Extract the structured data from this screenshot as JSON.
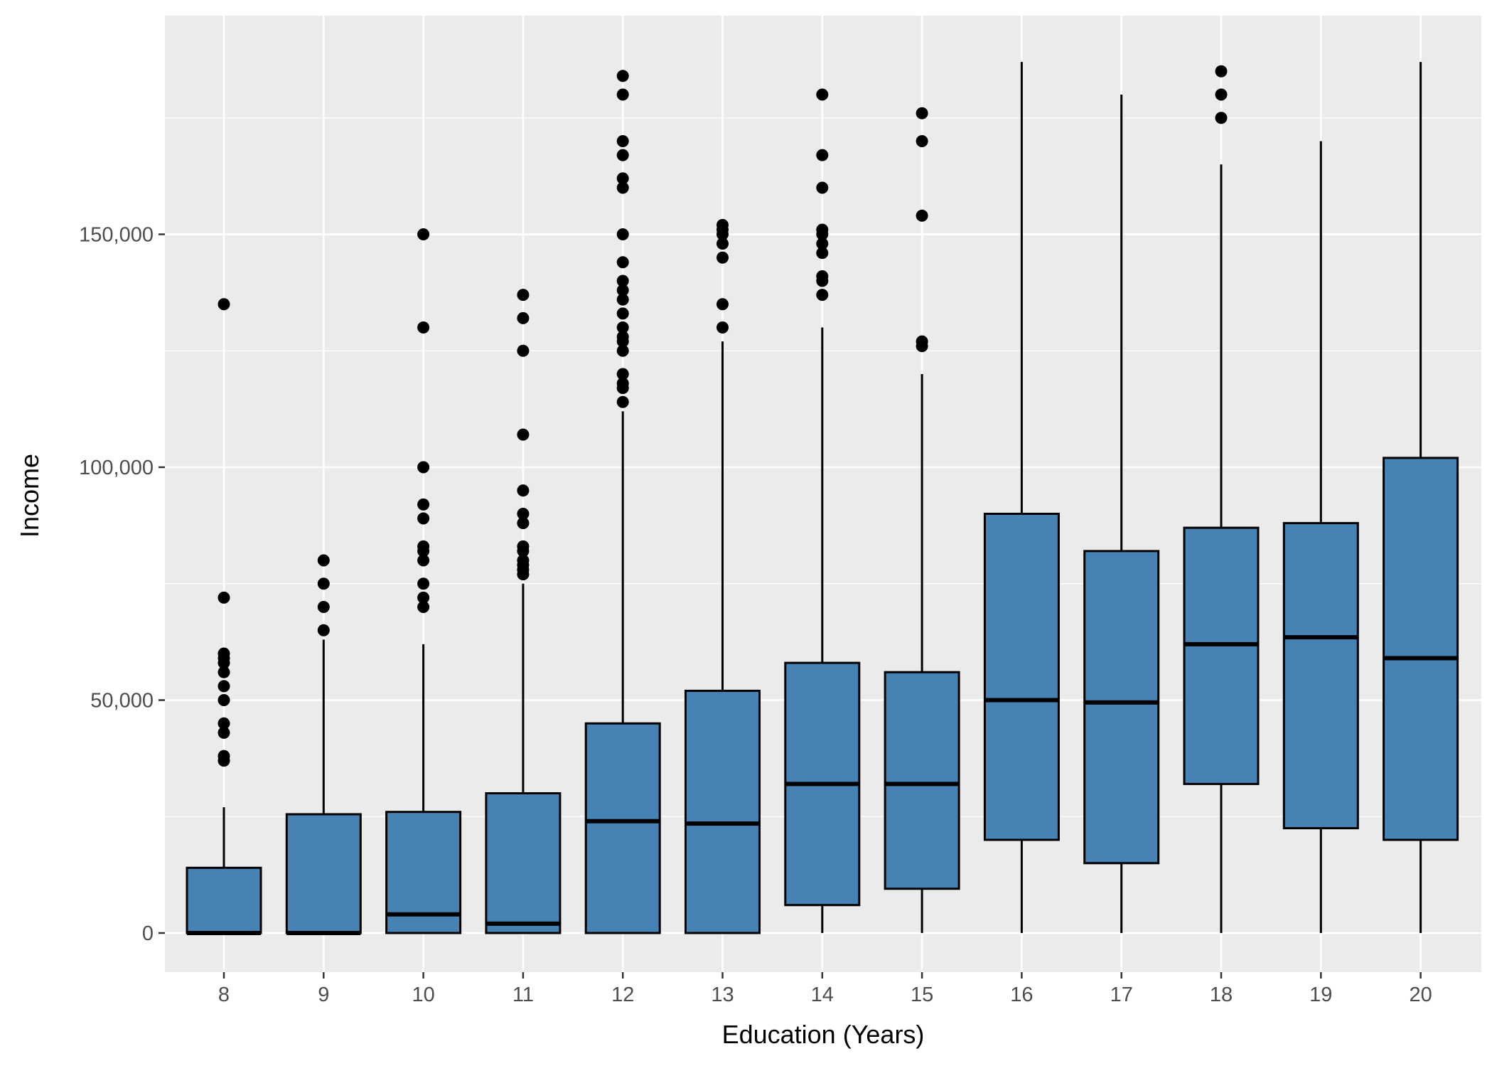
{
  "chart_data": {
    "type": "box",
    "title": "",
    "xlabel": "Education (Years)",
    "ylabel": "Income",
    "categories": [
      "8",
      "9",
      "10",
      "11",
      "12",
      "13",
      "14",
      "15",
      "16",
      "17",
      "18",
      "19",
      "20"
    ],
    "ylim": [
      -9500,
      197000
    ],
    "yticks": [
      0,
      50000,
      100000,
      150000
    ],
    "ytick_labels": [
      "0",
      "50,000",
      "100,000",
      "150,000"
    ],
    "grid": true,
    "legend": "none",
    "fill_color": "#4682b4",
    "panel_background": "#ebebeb",
    "outline_color": "#000000",
    "boxes": [
      {
        "category": "8",
        "min": 0,
        "q1": 0,
        "median": 0,
        "q3": 14000,
        "max": 27000,
        "outliers": [
          37000,
          38000,
          43000,
          45000,
          50000,
          53000,
          56000,
          58000,
          59000,
          60000,
          72000,
          135000
        ]
      },
      {
        "category": "9",
        "min": 0,
        "q1": 0,
        "median": 0,
        "q3": 25500,
        "max": 63000,
        "outliers": [
          65000,
          70000,
          75000,
          80000
        ]
      },
      {
        "category": "10",
        "min": 0,
        "q1": 0,
        "median": 4000,
        "q3": 26000,
        "max": 62000,
        "outliers": [
          70000,
          72000,
          75000,
          80000,
          82000,
          83000,
          89000,
          92000,
          100000,
          130000,
          150000
        ]
      },
      {
        "category": "11",
        "min": 0,
        "q1": 0,
        "median": 2000,
        "q3": 30000,
        "max": 75000,
        "outliers": [
          77000,
          78000,
          79000,
          80000,
          82000,
          83000,
          88000,
          90000,
          95000,
          107000,
          125000,
          132000,
          137000
        ]
      },
      {
        "category": "12",
        "min": 0,
        "q1": 0,
        "median": 24000,
        "q3": 45000,
        "max": 112000,
        "outliers": [
          114000,
          117000,
          118000,
          120000,
          125000,
          127000,
          128000,
          130000,
          133000,
          136000,
          138000,
          140000,
          144000,
          150000,
          160000,
          162000,
          167000,
          170000,
          180000,
          184000
        ]
      },
      {
        "category": "13",
        "min": 0,
        "q1": 0,
        "median": 23500,
        "q3": 52000,
        "max": 127000,
        "outliers": [
          130000,
          135000,
          145000,
          148000,
          150000,
          151000,
          152000
        ]
      },
      {
        "category": "14",
        "min": 0,
        "q1": 6000,
        "median": 32000,
        "q3": 58000,
        "max": 130000,
        "outliers": [
          137000,
          140000,
          141000,
          146000,
          148000,
          150000,
          151000,
          160000,
          167000,
          180000
        ]
      },
      {
        "category": "15",
        "min": 0,
        "q1": 9500,
        "median": 32000,
        "q3": 56000,
        "max": 120000,
        "outliers": [
          126000,
          127000,
          154000,
          170000,
          176000
        ]
      },
      {
        "category": "16",
        "min": 0,
        "q1": 20000,
        "median": 50000,
        "q3": 90000,
        "max": 187000,
        "outliers": []
      },
      {
        "category": "17",
        "min": 0,
        "q1": 15000,
        "median": 49500,
        "q3": 82000,
        "max": 180000,
        "outliers": []
      },
      {
        "category": "18",
        "min": 0,
        "q1": 32000,
        "median": 62000,
        "q3": 87000,
        "max": 165000,
        "outliers": [
          175000,
          180000,
          185000
        ]
      },
      {
        "category": "19",
        "min": 0,
        "q1": 22500,
        "median": 63500,
        "q3": 88000,
        "max": 170000,
        "outliers": []
      },
      {
        "category": "20",
        "min": 0,
        "q1": 20000,
        "median": 59000,
        "q3": 102000,
        "max": 187000,
        "outliers": []
      }
    ]
  }
}
